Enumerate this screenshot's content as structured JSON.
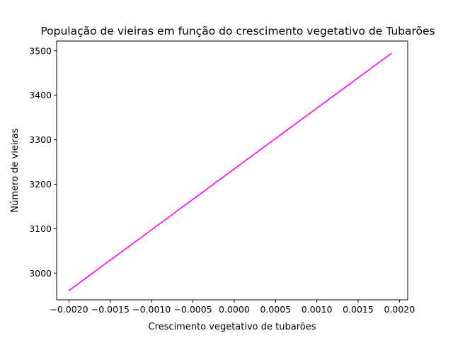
{
  "chart_data": {
    "type": "line",
    "title": "População de vieiras em função do crescimento vegetativo de Tubarões",
    "xlabel": "Crescimento vegetativo de tubarões",
    "ylabel": "Número de vieiras",
    "xlim": [
      -0.00215,
      0.0021
    ],
    "ylim": [
      2940,
      3522
    ],
    "xticks": [
      -0.002,
      -0.0015,
      -0.001,
      -0.0005,
      0.0,
      0.0005,
      0.001,
      0.0015,
      0.002
    ],
    "xtick_labels": [
      "−0.0020",
      "−0.0015",
      "−0.0010",
      "−0.0005",
      "0.0000",
      "0.0005",
      "0.0010",
      "0.0015",
      "0.0020"
    ],
    "yticks": [
      3000,
      3100,
      3200,
      3300,
      3400,
      3500
    ],
    "ytick_labels": [
      "3000",
      "3100",
      "3200",
      "3300",
      "3400",
      "3500"
    ],
    "grid": false,
    "series": [
      {
        "color": "#ff00ff",
        "x": [
          -0.002,
          0.0019
        ],
        "y": [
          2961,
          3494
        ]
      }
    ]
  }
}
